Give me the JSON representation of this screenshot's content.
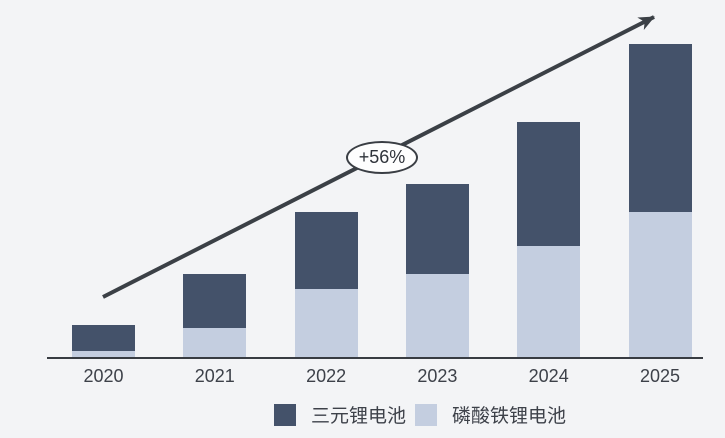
{
  "chart_data": {
    "type": "bar",
    "stacked": true,
    "title": "",
    "xlabel": "",
    "ylabel": "",
    "grid": false,
    "legend_position": "bottom",
    "categories": [
      "2020",
      "2021",
      "2022",
      "2023",
      "2024",
      "2025"
    ],
    "series": [
      {
        "name": "三元锂电池",
        "color": "#44526a",
        "values": [
          26,
          54,
          77,
          90,
          124,
          168
        ]
      },
      {
        "name": "磷酸铁锂电池",
        "color": "#c4cee0",
        "values": [
          7,
          30,
          69,
          84,
          112,
          146
        ]
      }
    ],
    "stack_order_bottom_to_top": [
      "磷酸铁锂电池",
      "三元锂电池"
    ],
    "totals": [
      33,
      84,
      146,
      174,
      236,
      314
    ],
    "ylim": [
      0,
      330
    ],
    "annotation": {
      "label": "+56%"
    }
  },
  "colors": {
    "background": "#f3f4f6",
    "axis": "#383c42",
    "arrow": "#3b4046",
    "text": "#3d4149",
    "annotation_background": "#fefefe",
    "annotation_border": "#3a3e44"
  }
}
